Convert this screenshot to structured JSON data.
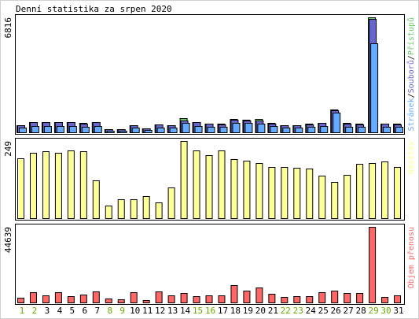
{
  "title": "Denní statistika za srpen 2020",
  "colors": {
    "hits": "#66cc66",
    "files": "#6666cc",
    "pages": "#66aaff",
    "visits": "#ffff99",
    "kbytes": "#ff6666",
    "weekend": "#66aa00",
    "weekday": "#000000"
  },
  "chart_data": [
    {
      "type": "bar",
      "name": "traffic",
      "ymax_label": "6816",
      "ylim": [
        0,
        6816
      ],
      "legend": [
        {
          "name": "Stránek",
          "color": "#66aaff"
        },
        {
          "name": "Souborů",
          "color": "#6666cc"
        },
        {
          "name": "Přístupů",
          "color": "#66cc66"
        }
      ],
      "legend_separator": "/",
      "categories": [
        "1",
        "2",
        "3",
        "4",
        "5",
        "6",
        "7",
        "8",
        "9",
        "10",
        "11",
        "12",
        "13",
        "14",
        "15",
        "16",
        "17",
        "18",
        "19",
        "20",
        "21",
        "22",
        "23",
        "24",
        "25",
        "26",
        "27",
        "28",
        "29",
        "30",
        "31"
      ],
      "weekend": [
        1,
        2,
        8,
        9,
        15,
        16,
        22,
        23,
        29,
        30
      ],
      "series": [
        {
          "name": "Přístupů",
          "values": [
            430,
            610,
            610,
            610,
            610,
            540,
            600,
            190,
            190,
            430,
            250,
            470,
            430,
            830,
            620,
            520,
            500,
            800,
            760,
            790,
            550,
            420,
            420,
            500,
            560,
            1360,
            560,
            510,
            6800,
            530,
            510
          ]
        },
        {
          "name": "Souborů",
          "values": [
            420,
            600,
            590,
            590,
            590,
            520,
            590,
            180,
            180,
            420,
            240,
            460,
            420,
            720,
            600,
            510,
            490,
            730,
            680,
            720,
            520,
            400,
            400,
            480,
            540,
            1320,
            520,
            490,
            6720,
            510,
            490
          ]
        },
        {
          "name": "Stránek",
          "values": [
            300,
            390,
            390,
            390,
            390,
            350,
            390,
            100,
            100,
            260,
            130,
            300,
            260,
            550,
            390,
            350,
            350,
            550,
            540,
            500,
            390,
            300,
            300,
            350,
            390,
            1150,
            350,
            330,
            5260,
            350,
            330
          ]
        }
      ]
    },
    {
      "type": "bar",
      "name": "visits",
      "ymax_label": "249",
      "ylim": [
        0,
        249
      ],
      "legend": [
        {
          "name": "Návštěv",
          "color": "#ffff99"
        }
      ],
      "categories": [
        "1",
        "2",
        "3",
        "4",
        "5",
        "6",
        "7",
        "8",
        "9",
        "10",
        "11",
        "12",
        "13",
        "14",
        "15",
        "16",
        "17",
        "18",
        "19",
        "20",
        "21",
        "22",
        "23",
        "24",
        "25",
        "26",
        "27",
        "28",
        "29",
        "30",
        "31"
      ],
      "series": [
        {
          "name": "Návštěv",
          "values": [
            194,
            210,
            216,
            212,
            218,
            216,
            122,
            40,
            62,
            60,
            70,
            50,
            100,
            249,
            219,
            202,
            219,
            190,
            186,
            178,
            164,
            166,
            162,
            160,
            136,
            116,
            140,
            176,
            178,
            182,
            166
          ]
        }
      ]
    },
    {
      "type": "bar",
      "name": "kbytes",
      "ymax_label": "44639",
      "ylim": [
        0,
        44639
      ],
      "legend": [
        {
          "name": "Objem přenosu",
          "color": "#ff6666"
        }
      ],
      "categories": [
        "1",
        "2",
        "3",
        "4",
        "5",
        "6",
        "7",
        "8",
        "9",
        "10",
        "11",
        "12",
        "13",
        "14",
        "15",
        "16",
        "17",
        "18",
        "19",
        "20",
        "21",
        "22",
        "23",
        "24",
        "25",
        "26",
        "27",
        "28",
        "29",
        "30",
        "31"
      ],
      "series": [
        {
          "name": "Objem přenosu",
          "values": [
            2970,
            6010,
            4060,
            6130,
            3900,
            4460,
            6720,
            2380,
            1680,
            5900,
            1410,
            6720,
            4060,
            5440,
            3910,
            3980,
            4410,
            10120,
            7110,
            8860,
            4970,
            3070,
            3530,
            3840,
            5900,
            7110,
            5770,
            5580,
            44639,
            3370,
            4400
          ]
        }
      ]
    }
  ]
}
